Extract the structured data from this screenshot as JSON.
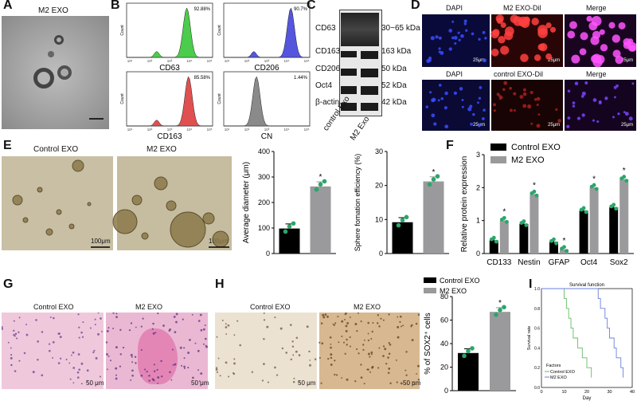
{
  "panels": {
    "A": {
      "label": "A",
      "title": "M2 EXO"
    },
    "B": {
      "label": "B",
      "plots": [
        {
          "name": "CD63",
          "percent": "92.88%",
          "color": "#4ccc4c"
        },
        {
          "name": "CD206",
          "percent": "90.7%",
          "color": "#5555dd"
        },
        {
          "name": "CD163",
          "percent": "85.58%",
          "color": "#e05050"
        },
        {
          "name": "CN",
          "percent": "1.44%",
          "color": "#8a8a8a"
        }
      ],
      "ylabel": "Count",
      "xticks": [
        "10¹",
        "10²",
        "10³",
        "10⁴",
        "10⁵"
      ]
    },
    "C": {
      "label": "C",
      "rows": [
        {
          "name": "CD63",
          "kda": "30~65 kDa"
        },
        {
          "name": "CD163",
          "kda": "163 kDa"
        },
        {
          "name": "CD206",
          "kda": "50 kDa"
        },
        {
          "name": "Oct4",
          "kda": "52 kDa"
        },
        {
          "name": "β-actin",
          "kda": "42 kDa"
        }
      ],
      "lanes": [
        "control Exo",
        "M2 Exo"
      ]
    },
    "D": {
      "label": "D",
      "top": [
        "DAPI",
        "M2 EXO-Dil",
        "Merge"
      ],
      "bottom": [
        "DAPI",
        "control EXO-Dil",
        "Merge"
      ],
      "scale": "25μm"
    },
    "E": {
      "label": "E",
      "img_titles": [
        "Control EXO",
        "M2 EXO"
      ],
      "scale": "100μm"
    },
    "F": {
      "label": "F"
    },
    "G": {
      "label": "G",
      "img_titles": [
        "Control EXO",
        "M2 EXO"
      ],
      "scale": "50 μm"
    },
    "H": {
      "label": "H",
      "img_titles": [
        "Control EXO",
        "M2 EXO"
      ],
      "scale": "50 μm"
    },
    "I": {
      "label": "I"
    }
  },
  "chart_data": [
    {
      "id": "E1",
      "type": "bar",
      "categories": [
        "Control EXO",
        "M2 EXO"
      ],
      "values": [
        98,
        263
      ],
      "ylabel": "Average diameter (μm)",
      "ylim": [
        0,
        400
      ],
      "yticks": [
        0,
        100,
        200,
        300,
        400
      ],
      "significance": [
        "",
        "*"
      ]
    },
    {
      "id": "E2",
      "type": "bar",
      "categories": [
        "Control EXO",
        "M2 EXO"
      ],
      "values": [
        9.2,
        21.2
      ],
      "ylabel": "Sphere fomation efficiency (%)",
      "ylim": [
        0,
        30
      ],
      "yticks": [
        0,
        10,
        20,
        30
      ],
      "significance": [
        "",
        "*"
      ]
    },
    {
      "id": "F",
      "type": "bar",
      "categories": [
        "CD133",
        "Nestin",
        "GFAP",
        "Oct4",
        "Sox2"
      ],
      "ylabel": "Relative protein expression",
      "ylim": [
        0,
        3
      ],
      "yticks": [
        0,
        1,
        2,
        3
      ],
      "series": [
        {
          "name": "Control EXO",
          "values": [
            0.4,
            0.9,
            0.35,
            1.3,
            1.4
          ]
        },
        {
          "name": "M2 EXO",
          "values": [
            1.0,
            1.8,
            0.12,
            2.0,
            2.25
          ]
        }
      ],
      "significance": [
        "*",
        "*",
        "*",
        "*",
        "*"
      ],
      "legend": "top"
    },
    {
      "id": "H",
      "type": "bar",
      "categories": [
        "Control EXO",
        "M2 EXO"
      ],
      "values": [
        32,
        67
      ],
      "ylabel": "% of SOX2⁺ cells",
      "ylim": [
        0,
        80
      ],
      "yticks": [
        0,
        20,
        40,
        60,
        80
      ],
      "series": [
        {
          "name": "Control EXO"
        },
        {
          "name": "M2 EXO"
        }
      ],
      "significance": [
        "",
        "*"
      ],
      "legend": "top"
    },
    {
      "id": "I",
      "type": "line",
      "title": "Survival function",
      "xlabel": "Day",
      "ylabel": "Survival rate",
      "xlim": [
        0,
        40
      ],
      "ylim": [
        0,
        1
      ],
      "xticks": [
        0,
        10,
        20,
        30,
        40
      ],
      "yticks": [
        0.0,
        0.2,
        0.4,
        0.6,
        0.8,
        1.0
      ],
      "legend_title": "Factors",
      "series": [
        {
          "name": "Control EXO",
          "color": "#66bb66",
          "x": [
            0,
            8,
            10,
            11,
            12,
            13,
            14,
            16,
            18,
            20,
            22
          ],
          "y": [
            1.0,
            1.0,
            0.9,
            0.8,
            0.7,
            0.6,
            0.5,
            0.4,
            0.3,
            0.2,
            0.1
          ]
        },
        {
          "name": "M2 EXO",
          "color": "#6a7fdc",
          "x": [
            0,
            19,
            25,
            26,
            28,
            29,
            30,
            32,
            33,
            35,
            36
          ],
          "y": [
            1.0,
            1.0,
            0.9,
            0.8,
            0.7,
            0.6,
            0.5,
            0.4,
            0.3,
            0.2,
            0.1
          ]
        }
      ]
    }
  ]
}
